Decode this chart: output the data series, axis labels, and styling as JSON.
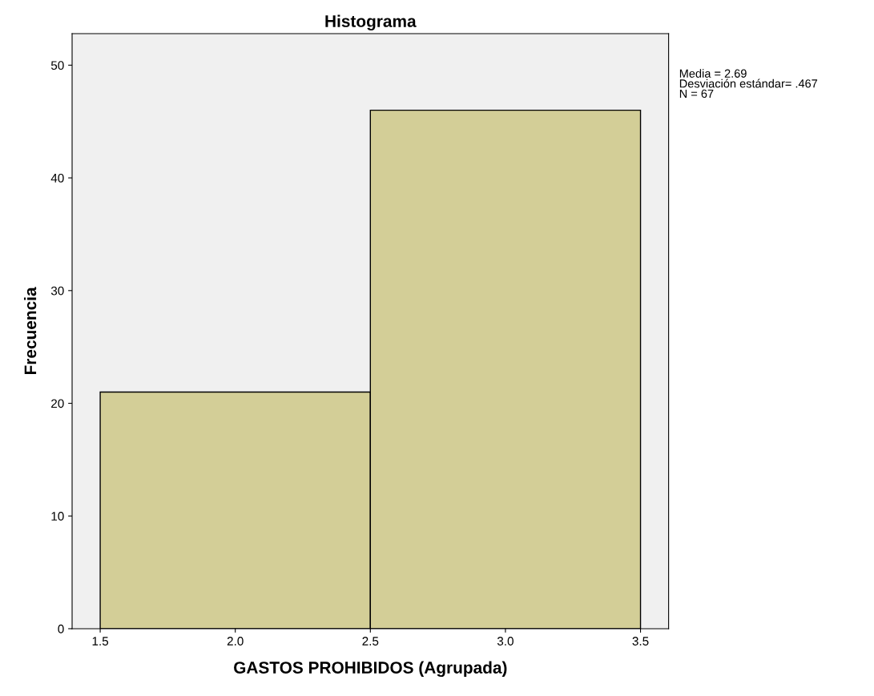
{
  "chart_data": {
    "type": "histogram",
    "title": "Histograma",
    "xlabel": "GASTOS PROHIBIDOS (Agrupada)",
    "ylabel": "Frecuencia",
    "bins": [
      1.5,
      2.5,
      3.5
    ],
    "values": [
      21,
      46
    ],
    "color": "#d3ce97",
    "xlim": [
      1.396,
      3.604
    ],
    "ylim": [
      0,
      52.8
    ],
    "xticks": [
      {
        "value": 1.5,
        "label": "1.5"
      },
      {
        "value": 2.0,
        "label": "2.0"
      },
      {
        "value": 2.5,
        "label": "2.5"
      },
      {
        "value": 3.0,
        "label": "3.0"
      },
      {
        "value": 3.5,
        "label": "3.5"
      }
    ],
    "yticks": [
      0,
      10,
      20,
      30,
      40,
      50
    ],
    "grid": false,
    "annotations": [
      "Media = 2.69",
      "Desviación estándar= .467",
      "N = 67"
    ]
  }
}
